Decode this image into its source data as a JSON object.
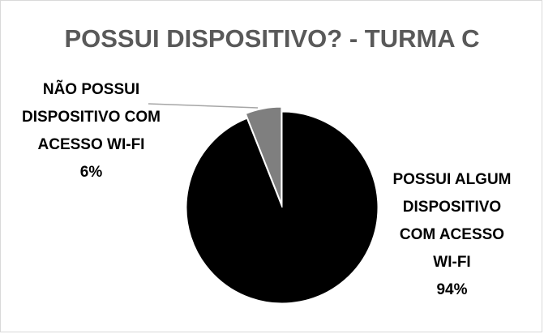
{
  "chart_data": {
    "type": "pie",
    "title": "POSSUI DISPOSITIVO? - TURMA C",
    "categories": [
      "POSSUI ALGUM DISPOSITIVO COM ACESSO WI-FI",
      "NÃO POSSUI DISPOSITIVO COM ACESSO WI-FI"
    ],
    "values": [
      94,
      6
    ],
    "value_labels": [
      "94%",
      "6%"
    ],
    "colors": [
      "#000000",
      "#7f7f7f"
    ]
  }
}
